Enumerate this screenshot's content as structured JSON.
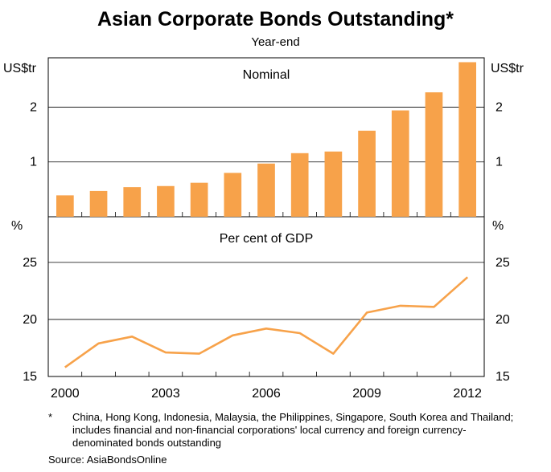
{
  "title": "Asian Corporate Bonds Outstanding*",
  "subtitle": "Year-end",
  "chart_data": [
    {
      "type": "bar",
      "panel_title": "Nominal",
      "ylabel_left": "US$tr",
      "ylabel_right": "US$tr",
      "ylim": [
        0,
        2.9
      ],
      "yticks": [
        1,
        2
      ],
      "color": "#f7a24a",
      "categories": [
        "2000",
        "2001",
        "2002",
        "2003",
        "2004",
        "2005",
        "2006",
        "2007",
        "2008",
        "2009",
        "2010",
        "2011",
        "2012"
      ],
      "values": [
        0.39,
        0.47,
        0.54,
        0.56,
        0.62,
        0.8,
        0.97,
        1.16,
        1.19,
        1.57,
        1.94,
        2.27,
        2.82
      ]
    },
    {
      "type": "line",
      "panel_title": "Per cent of GDP",
      "ylabel_left": "%",
      "ylabel_right": "%",
      "ylim": [
        15,
        29
      ],
      "yticks": [
        15,
        20,
        25
      ],
      "color": "#f7a24a",
      "x": [
        "2000",
        "2001",
        "2002",
        "2003",
        "2004",
        "2005",
        "2006",
        "2007",
        "2008",
        "2009",
        "2010",
        "2011",
        "2012"
      ],
      "values": [
        15.8,
        17.9,
        18.5,
        17.1,
        17.0,
        18.6,
        19.2,
        18.8,
        17.0,
        20.6,
        21.2,
        21.1,
        23.7
      ]
    }
  ],
  "x_tick_labels": [
    "2000",
    "2003",
    "2006",
    "2009",
    "2012"
  ],
  "footnote_marker": "*",
  "footnote": "China, Hong Kong, Indonesia, Malaysia, the Philippines, Singapore, South Korea and Thailand; includes financial and non-financial corporations' local currency and foreign currency-denominated bonds outstanding",
  "source": "Source: AsiaBondsOnline"
}
